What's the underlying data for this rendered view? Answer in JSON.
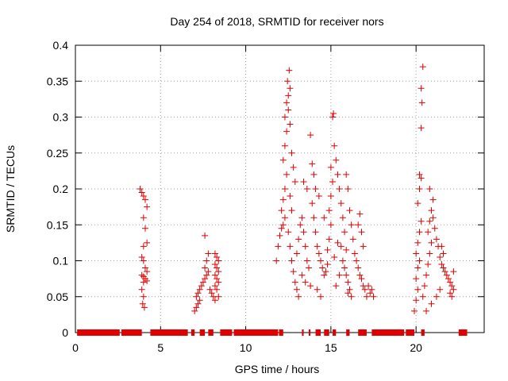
{
  "chart_data": {
    "type": "scatter",
    "title": "Day 254 of 2018, SRMTID for receiver nors",
    "xlabel": "GPS time / hours",
    "ylabel": "SRMTID / TECUs",
    "xlim": [
      0,
      24
    ],
    "ylim": [
      0,
      0.4
    ],
    "xticks": [
      0,
      5,
      10,
      15,
      20
    ],
    "yticks": [
      0,
      0.05,
      0.1,
      0.15,
      0.2,
      0.25,
      0.3,
      0.35,
      0.4
    ],
    "grid": true,
    "marker": "+",
    "color": "#e00000",
    "series": [
      {
        "name": "nors",
        "points": [
          [
            3.8,
            0.2
          ],
          [
            3.9,
            0.195
          ],
          [
            4.0,
            0.19
          ],
          [
            4.1,
            0.185
          ],
          [
            4.2,
            0.175
          ],
          [
            4.0,
            0.16
          ],
          [
            4.1,
            0.145
          ],
          [
            4.2,
            0.125
          ],
          [
            4.0,
            0.12
          ],
          [
            3.9,
            0.105
          ],
          [
            4.0,
            0.1
          ],
          [
            4.1,
            0.09
          ],
          [
            4.2,
            0.085
          ],
          [
            3.9,
            0.08
          ],
          [
            4.0,
            0.078
          ],
          [
            4.1,
            0.075
          ],
          [
            4.2,
            0.072
          ],
          [
            4.0,
            0.07
          ],
          [
            3.9,
            0.06
          ],
          [
            4.0,
            0.05
          ],
          [
            3.95,
            0.04
          ],
          [
            4.05,
            0.035
          ],
          [
            7.0,
            0.03
          ],
          [
            7.1,
            0.035
          ],
          [
            7.2,
            0.04
          ],
          [
            7.3,
            0.045
          ],
          [
            7.1,
            0.05
          ],
          [
            7.2,
            0.055
          ],
          [
            7.3,
            0.06
          ],
          [
            7.4,
            0.065
          ],
          [
            7.5,
            0.07
          ],
          [
            7.6,
            0.075
          ],
          [
            7.7,
            0.08
          ],
          [
            7.8,
            0.085
          ],
          [
            7.6,
            0.09
          ],
          [
            7.7,
            0.1
          ],
          [
            7.8,
            0.11
          ],
          [
            7.6,
            0.135
          ],
          [
            7.9,
            0.06
          ],
          [
            8.0,
            0.055
          ],
          [
            8.1,
            0.05
          ],
          [
            8.2,
            0.11
          ],
          [
            8.3,
            0.105
          ],
          [
            8.4,
            0.1
          ],
          [
            8.2,
            0.095
          ],
          [
            8.3,
            0.09
          ],
          [
            8.4,
            0.085
          ],
          [
            8.2,
            0.08
          ],
          [
            8.3,
            0.075
          ],
          [
            8.4,
            0.07
          ],
          [
            8.2,
            0.065
          ],
          [
            8.3,
            0.06
          ],
          [
            8.4,
            0.05
          ],
          [
            8.2,
            0.045
          ],
          [
            11.8,
            0.1
          ],
          [
            11.9,
            0.12
          ],
          [
            12.0,
            0.135
          ],
          [
            12.1,
            0.145
          ],
          [
            12.2,
            0.15
          ],
          [
            12.3,
            0.16
          ],
          [
            12.1,
            0.17
          ],
          [
            12.2,
            0.185
          ],
          [
            12.3,
            0.2
          ],
          [
            12.4,
            0.22
          ],
          [
            12.2,
            0.24
          ],
          [
            12.3,
            0.26
          ],
          [
            12.4,
            0.28
          ],
          [
            12.3,
            0.3
          ],
          [
            12.4,
            0.32
          ],
          [
            12.5,
            0.33
          ],
          [
            12.45,
            0.35
          ],
          [
            12.55,
            0.365
          ],
          [
            12.6,
            0.34
          ],
          [
            12.5,
            0.31
          ],
          [
            12.6,
            0.29
          ],
          [
            12.7,
            0.25
          ],
          [
            12.8,
            0.23
          ],
          [
            12.9,
            0.21
          ],
          [
            12.6,
            0.19
          ],
          [
            12.7,
            0.17
          ],
          [
            12.5,
            0.14
          ],
          [
            12.6,
            0.12
          ],
          [
            12.7,
            0.1
          ],
          [
            12.8,
            0.085
          ],
          [
            12.9,
            0.07
          ],
          [
            13.0,
            0.06
          ],
          [
            13.1,
            0.05
          ],
          [
            13.0,
            0.11
          ],
          [
            13.1,
            0.13
          ],
          [
            13.2,
            0.15
          ],
          [
            13.3,
            0.16
          ],
          [
            13.4,
            0.14
          ],
          [
            13.5,
            0.12
          ],
          [
            13.6,
            0.1
          ],
          [
            13.7,
            0.09
          ],
          [
            13.8,
            0.275
          ],
          [
            13.9,
            0.235
          ],
          [
            14.0,
            0.22
          ],
          [
            14.1,
            0.2
          ],
          [
            13.9,
            0.18
          ],
          [
            14.0,
            0.16
          ],
          [
            14.1,
            0.14
          ],
          [
            14.2,
            0.12
          ],
          [
            14.3,
            0.11
          ],
          [
            14.4,
            0.1
          ],
          [
            14.5,
            0.09
          ],
          [
            14.6,
            0.08
          ],
          [
            14.7,
            0.085
          ],
          [
            14.8,
            0.095
          ],
          [
            14.9,
            0.13
          ],
          [
            15.0,
            0.15
          ],
          [
            14.9,
            0.17
          ],
          [
            15.0,
            0.19
          ],
          [
            15.1,
            0.21
          ],
          [
            15.0,
            0.23
          ],
          [
            15.1,
            0.3
          ],
          [
            15.15,
            0.305
          ],
          [
            15.2,
            0.26
          ],
          [
            15.3,
            0.24
          ],
          [
            15.4,
            0.22
          ],
          [
            15.5,
            0.2
          ],
          [
            15.6,
            0.18
          ],
          [
            15.7,
            0.16
          ],
          [
            15.8,
            0.14
          ],
          [
            15.6,
            0.12
          ],
          [
            15.7,
            0.1
          ],
          [
            15.8,
            0.09
          ],
          [
            15.9,
            0.08
          ],
          [
            16.0,
            0.07
          ],
          [
            16.1,
            0.06
          ],
          [
            16.0,
            0.055
          ],
          [
            16.2,
            0.05
          ],
          [
            15.9,
            0.22
          ],
          [
            16.0,
            0.2
          ],
          [
            16.1,
            0.17
          ],
          [
            16.2,
            0.15
          ],
          [
            16.3,
            0.13
          ],
          [
            16.4,
            0.11
          ],
          [
            16.5,
            0.1
          ],
          [
            16.6,
            0.09
          ],
          [
            16.7,
            0.08
          ],
          [
            16.8,
            0.075
          ],
          [
            16.9,
            0.065
          ],
          [
            17.0,
            0.06
          ],
          [
            16.6,
            0.15
          ],
          [
            16.7,
            0.165
          ],
          [
            16.8,
            0.14
          ],
          [
            16.9,
            0.12
          ],
          [
            17.1,
            0.05
          ],
          [
            17.3,
            0.055
          ],
          [
            17.4,
            0.06
          ],
          [
            17.5,
            0.05
          ],
          [
            17.2,
            0.065
          ],
          [
            13.3,
            0.08
          ],
          [
            13.5,
            0.07
          ],
          [
            13.8,
            0.065
          ],
          [
            14.2,
            0.06
          ],
          [
            14.4,
            0.05
          ],
          [
            15.3,
            0.065
          ],
          [
            15.5,
            0.08
          ],
          [
            14.6,
            0.16
          ],
          [
            14.3,
            0.19
          ],
          [
            13.6,
            0.2
          ],
          [
            13.4,
            0.21
          ],
          [
            14.8,
            0.115
          ],
          [
            15.2,
            0.105
          ],
          [
            15.4,
            0.125
          ],
          [
            15.9,
            0.115
          ],
          [
            19.9,
            0.03
          ],
          [
            20.0,
            0.045
          ],
          [
            20.1,
            0.06
          ],
          [
            20.0,
            0.075
          ],
          [
            20.1,
            0.09
          ],
          [
            20.2,
            0.1
          ],
          [
            20.0,
            0.11
          ],
          [
            20.1,
            0.125
          ],
          [
            20.2,
            0.14
          ],
          [
            20.3,
            0.155
          ],
          [
            20.1,
            0.18
          ],
          [
            20.2,
            0.2
          ],
          [
            20.3,
            0.215
          ],
          [
            20.2,
            0.22
          ],
          [
            20.3,
            0.285
          ],
          [
            20.35,
            0.32
          ],
          [
            20.3,
            0.34
          ],
          [
            20.4,
            0.37
          ],
          [
            20.4,
            0.05
          ],
          [
            20.5,
            0.065
          ],
          [
            20.6,
            0.08
          ],
          [
            20.7,
            0.095
          ],
          [
            20.8,
            0.11
          ],
          [
            20.9,
            0.125
          ],
          [
            20.7,
            0.14
          ],
          [
            20.8,
            0.155
          ],
          [
            20.9,
            0.17
          ],
          [
            21.0,
            0.185
          ],
          [
            20.8,
            0.2
          ],
          [
            21.0,
            0.16
          ],
          [
            21.1,
            0.145
          ],
          [
            21.2,
            0.13
          ],
          [
            21.3,
            0.12
          ],
          [
            21.4,
            0.105
          ],
          [
            21.5,
            0.095
          ],
          [
            21.6,
            0.09
          ],
          [
            21.7,
            0.085
          ],
          [
            21.8,
            0.08
          ],
          [
            21.9,
            0.075
          ],
          [
            22.0,
            0.07
          ],
          [
            22.1,
            0.065
          ],
          [
            22.2,
            0.06
          ],
          [
            22.0,
            0.055
          ],
          [
            22.1,
            0.05
          ],
          [
            22.2,
            0.085
          ],
          [
            21.5,
            0.12
          ],
          [
            21.6,
            0.11
          ],
          [
            20.6,
            0.03
          ],
          [
            20.9,
            0.04
          ],
          [
            21.2,
            0.05
          ],
          [
            21.4,
            0.06
          ]
        ]
      }
    ],
    "zero_intervals": [
      [
        0.1,
        2.6
      ],
      [
        2.7,
        3.9
      ],
      [
        4.4,
        6.6
      ],
      [
        6.8,
        7.0
      ],
      [
        7.3,
        7.6
      ],
      [
        7.8,
        8.1
      ],
      [
        8.5,
        9.2
      ],
      [
        9.3,
        11.9
      ],
      [
        11.95,
        12.2
      ],
      [
        13.3,
        13.4
      ],
      [
        13.7,
        13.8
      ],
      [
        14.1,
        14.4
      ],
      [
        14.6,
        14.9
      ],
      [
        15.1,
        15.3
      ],
      [
        15.9,
        16.1
      ],
      [
        16.6,
        17.1
      ],
      [
        17.4,
        19.3
      ],
      [
        19.4,
        19.9
      ],
      [
        20.3,
        20.5
      ],
      [
        22.5,
        23.0
      ]
    ]
  }
}
